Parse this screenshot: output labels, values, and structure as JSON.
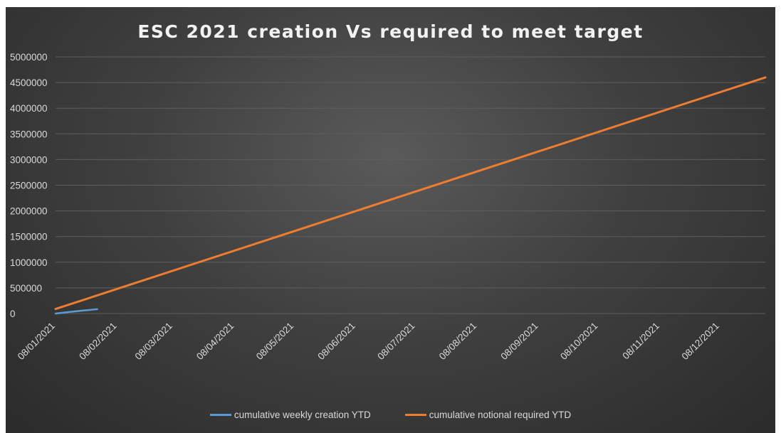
{
  "chart_data": {
    "type": "line",
    "title": "ESC 2021 creation Vs required to meet target",
    "xlabel": "",
    "ylabel": "",
    "x_tick_labels": [
      "08/01/2021",
      "08/02/2021",
      "08/03/2021",
      "08/04/2021",
      "08/05/2021",
      "08/06/2021",
      "08/07/2021",
      "08/08/2021",
      "08/09/2021",
      "08/10/2021",
      "08/11/2021",
      "08/12/2021"
    ],
    "y_tick_labels": [
      "0",
      "500000",
      "1000000",
      "1500000",
      "2000000",
      "2500000",
      "3000000",
      "3500000",
      "4000000",
      "4500000",
      "5000000"
    ],
    "ylim": [
      0,
      5000000
    ],
    "xlim": [
      "2021-01-08",
      "2021-12-31"
    ],
    "grid": "horizontal",
    "legend": "bottom",
    "series": [
      {
        "name": "cumulative weekly creation YTD",
        "color": "#5b9bd5",
        "points": [
          [
            "2021-01-08",
            0
          ],
          [
            "2021-01-15",
            30000
          ],
          [
            "2021-01-22",
            60000
          ],
          [
            "2021-01-29",
            85000
          ]
        ]
      },
      {
        "name": "cumulative notional required YTD",
        "color": "#ed7d31",
        "points": [
          [
            "2021-01-08",
            88000
          ],
          [
            "2021-12-31",
            4600000
          ]
        ]
      }
    ]
  }
}
